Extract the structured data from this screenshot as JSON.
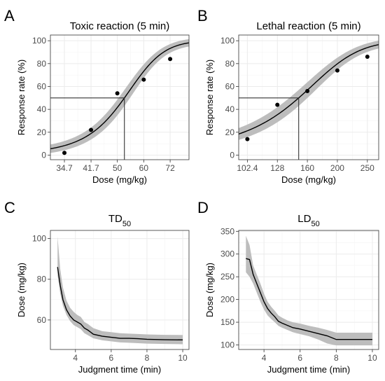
{
  "chart_data": [
    {
      "panel": "A",
      "type": "line",
      "title": "Toxic reaction (5 min)",
      "xlabel": "Dose (mg/kg)",
      "ylabel": "Response rate (%)",
      "x_scale": "log",
      "xlim": [
        31.5,
        82
      ],
      "ylim": [
        -4,
        105
      ],
      "x_ticks": [
        34.7,
        41.7,
        50,
        60,
        72
      ],
      "x_tick_labels": [
        "34.7",
        "41.7",
        "50",
        "60",
        "72"
      ],
      "y_ticks": [
        0,
        20,
        40,
        60,
        80,
        100
      ],
      "points": {
        "x": [
          34.7,
          41.7,
          50,
          60,
          72
        ],
        "y": [
          2,
          22,
          54,
          66,
          84
        ]
      },
      "fit": {
        "x50": 52.5,
        "slope": 0.135
      },
      "band_halfwidth": 5,
      "reference": {
        "y": 50,
        "x": 52.5
      },
      "grid": true
    },
    {
      "panel": "B",
      "type": "line",
      "title": "Lethal reaction (5 min)",
      "xlabel": "Dose (mg/kg)",
      "ylabel": "Response rate (%)",
      "x_scale": "log",
      "xlim": [
        96,
        272
      ],
      "ylim": [
        -4,
        105
      ],
      "x_ticks": [
        102.4,
        128,
        160,
        200,
        250
      ],
      "x_tick_labels": [
        "102.4",
        "128",
        "160",
        "200",
        "250"
      ],
      "y_ticks": [
        0,
        20,
        40,
        60,
        80,
        100
      ],
      "points": {
        "x": [
          102.4,
          128,
          160,
          200,
          250
        ],
        "y": [
          14,
          44,
          56,
          74,
          86
        ]
      },
      "fit": {
        "x50": 150,
        "slope": 0.0275
      },
      "band_halfwidth": 5,
      "reference": {
        "y": 50,
        "x": 150
      },
      "grid": true
    },
    {
      "panel": "C",
      "type": "line",
      "title_main": "TD",
      "title_sub": "50",
      "xlabel": "Judgment time (min)",
      "ylabel": "Dose (mg/kg)",
      "xlim": [
        2.6,
        10.35
      ],
      "ylim": [
        45.5,
        104
      ],
      "x_ticks": [
        4,
        6,
        8,
        10
      ],
      "y_ticks": [
        60,
        80,
        100
      ],
      "series": [
        {
          "x": [
            3,
            3.15,
            3.3,
            3.5,
            3.7,
            3.9,
            4.1,
            4.3,
            4.5,
            4.7,
            5,
            5.5,
            6,
            6.5,
            7,
            7.5,
            8,
            9,
            10
          ],
          "y": [
            86,
            77,
            70,
            65,
            62,
            60,
            59,
            58,
            56,
            55,
            53,
            52,
            51.5,
            51,
            51,
            50.8,
            50.5,
            50.3,
            50.2
          ],
          "lower": [
            82,
            73,
            67,
            62.5,
            59.5,
            57.5,
            56.5,
            55.5,
            53.5,
            52.5,
            51,
            50,
            49.5,
            49,
            48.8,
            48.6,
            48.4,
            48.2,
            48.1
          ],
          "upper": [
            101,
            85,
            76,
            69.5,
            66,
            64,
            62.5,
            61.5,
            59,
            58,
            56,
            54.5,
            54,
            53.5,
            53.3,
            53.1,
            52.9,
            52.7,
            52.6
          ]
        }
      ],
      "grid": true
    },
    {
      "panel": "D",
      "type": "line",
      "title_main": "LD",
      "title_sub": "50",
      "xlabel": "Judgment time (min)",
      "ylabel": "Dose (mg/kg)",
      "xlim": [
        2.6,
        10.35
      ],
      "ylim": [
        90,
        352
      ],
      "x_ticks": [
        4,
        6,
        8,
        10
      ],
      "y_ticks": [
        100,
        150,
        200,
        250,
        300,
        350
      ],
      "series": [
        {
          "x": [
            3,
            3.2,
            3.4,
            3.6,
            3.8,
            4,
            4.2,
            4.4,
            4.6,
            4.8,
            5,
            5.3,
            5.6,
            6,
            6.5,
            7,
            7.5,
            8,
            9,
            10
          ],
          "y": [
            290,
            288,
            255,
            235,
            215,
            195,
            180,
            170,
            162,
            152,
            148,
            143,
            138,
            135,
            130,
            125,
            120,
            112,
            112,
            112
          ],
          "lower": [
            260,
            250,
            235,
            215,
            195,
            178,
            165,
            157,
            150,
            142,
            138,
            133,
            128,
            124,
            119,
            112,
            103,
            99,
            99,
            99
          ],
          "upper": [
            340,
            320,
            275,
            255,
            235,
            213,
            195,
            184,
            175,
            165,
            160,
            154,
            150,
            147,
            142,
            138,
            133,
            127,
            127,
            127
          ]
        }
      ],
      "grid": true
    }
  ]
}
